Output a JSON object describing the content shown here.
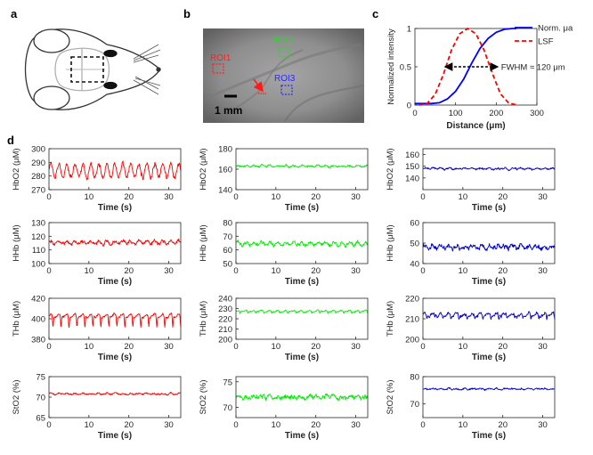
{
  "panel_labels": {
    "a": "a",
    "b": "b",
    "c": "c",
    "d": "d"
  },
  "image_b": {
    "roi1": "ROI1",
    "roi2": "ROI2",
    "roi3": "ROI3",
    "scale_bar": "1 mm",
    "roi_colors": {
      "roi1": "#ff2020",
      "roi2": "#22dd22",
      "roi3": "#2a2aff"
    }
  },
  "chart_data": [
    {
      "id": "c",
      "type": "line",
      "xlabel": "Distance (μm)",
      "ylabel": "Normalized intensity",
      "xlim": [
        0,
        300
      ],
      "ylim": [
        0,
        1
      ],
      "xticks": [
        0,
        100,
        200,
        300
      ],
      "yticks": [
        0,
        0.5,
        1
      ],
      "legend_position": "top-right",
      "annotation": "FWHM ≈ 120 μm",
      "series": [
        {
          "name": "Norm. μa",
          "color": "#0000ff",
          "style": "solid",
          "x": [
            0,
            20,
            40,
            60,
            80,
            100,
            120,
            140,
            160,
            180,
            200,
            220,
            240,
            250
          ],
          "y": [
            0.02,
            0.02,
            0.02,
            0.03,
            0.08,
            0.18,
            0.34,
            0.55,
            0.74,
            0.87,
            0.95,
            0.99,
            1.0,
            1.0
          ]
        },
        {
          "name": "LSF",
          "color": "#ff0000",
          "style": "dashed",
          "x": [
            10,
            30,
            50,
            70,
            90,
            110,
            130,
            150,
            170,
            190,
            210,
            230,
            250
          ],
          "y": [
            0.0,
            0.02,
            0.14,
            0.4,
            0.72,
            0.93,
            1.0,
            0.93,
            0.72,
            0.42,
            0.15,
            0.03,
            0.0
          ]
        }
      ]
    },
    {
      "id": "d-r1-c1",
      "type": "line",
      "ylabel": "HbO2 (μM)",
      "xlabel": "Time (s)",
      "xlim": [
        0,
        33
      ],
      "ylim": [
        270,
        300
      ],
      "yticks": [
        270,
        280,
        290,
        300
      ],
      "xticks": [
        0,
        10,
        20,
        30
      ],
      "color": "#ff0000",
      "series": [
        {
          "mean": 284,
          "noise": 2.2,
          "osc": 5,
          "period": 2.0,
          "dips": false
        }
      ]
    },
    {
      "id": "d-r1-c2",
      "type": "line",
      "ylabel": "HbO2 (μM)",
      "xlabel": "Time (s)",
      "xlim": [
        0,
        33
      ],
      "ylim": [
        140,
        180
      ],
      "yticks": [
        140,
        160,
        180
      ],
      "xticks": [
        0,
        10,
        20,
        30
      ],
      "color": "#00ee00",
      "series": [
        {
          "mean": 163,
          "noise": 1.2,
          "osc": 0.6,
          "period": 2.0,
          "dips": false
        }
      ]
    },
    {
      "id": "d-r1-c3",
      "type": "line",
      "ylabel": "HbO2 (μM)",
      "xlabel": "Time (s)",
      "xlim": [
        0,
        33
      ],
      "ylim": [
        130,
        165
      ],
      "yticks": [
        140,
        150,
        160
      ],
      "xticks": [
        0,
        10,
        20,
        30
      ],
      "color": "#0000cc",
      "series": [
        {
          "mean": 148,
          "noise": 1.0,
          "osc": 0.5,
          "period": 2.0,
          "dips": false
        }
      ]
    },
    {
      "id": "d-r2-c1",
      "type": "line",
      "ylabel": "HHb (μM)",
      "xlabel": "Time (s)",
      "xlim": [
        0,
        33
      ],
      "ylim": [
        100,
        130
      ],
      "yticks": [
        100,
        110,
        120,
        130
      ],
      "xticks": [
        0,
        10,
        20,
        30
      ],
      "color": "#ff0000",
      "series": [
        {
          "mean": 115.5,
          "noise": 1.6,
          "osc": 1.2,
          "period": 2.0,
          "dips": false
        }
      ]
    },
    {
      "id": "d-r2-c2",
      "type": "line",
      "ylabel": "HHb (μM)",
      "xlabel": "Time (s)",
      "xlim": [
        0,
        33
      ],
      "ylim": [
        50,
        80
      ],
      "yticks": [
        50,
        60,
        70,
        80
      ],
      "xticks": [
        0,
        10,
        20,
        30
      ],
      "color": "#00ee00",
      "series": [
        {
          "mean": 64.5,
          "noise": 1.6,
          "osc": 1.0,
          "period": 2.0,
          "dips": false
        }
      ]
    },
    {
      "id": "d-r2-c3",
      "type": "line",
      "ylabel": "HHb (μM)",
      "xlabel": "Time (s)",
      "xlim": [
        0,
        33
      ],
      "ylim": [
        40,
        60
      ],
      "yticks": [
        40,
        50,
        60
      ],
      "xticks": [
        0,
        10,
        20,
        30
      ],
      "color": "#0000cc",
      "series": [
        {
          "mean": 48,
          "noise": 1.5,
          "osc": 0.6,
          "period": 2.0,
          "dips": false
        }
      ]
    },
    {
      "id": "d-r3-c1",
      "type": "line",
      "ylabel": "THb (μM)",
      "xlabel": "Time (s)",
      "xlim": [
        0,
        33
      ],
      "ylim": [
        380,
        420
      ],
      "yticks": [
        380,
        400,
        420
      ],
      "xticks": [
        0,
        10,
        20,
        30
      ],
      "color": "#ff0000",
      "series": [
        {
          "mean": 403,
          "noise": 1.3,
          "osc": 1.5,
          "period": 2.0,
          "dips": true,
          "dip_depth": 11
        }
      ]
    },
    {
      "id": "d-r3-c2",
      "type": "line",
      "ylabel": "THb (μM)",
      "xlabel": "Time (s)",
      "xlim": [
        0,
        33
      ],
      "ylim": [
        200,
        240
      ],
      "yticks": [
        200,
        210,
        220,
        230,
        240
      ],
      "xticks": [
        0,
        10,
        20,
        30
      ],
      "color": "#00ee00",
      "series": [
        {
          "mean": 227.5,
          "noise": 0.8,
          "osc": 0.6,
          "period": 2.0,
          "dips": true,
          "dip_depth": 2
        }
      ]
    },
    {
      "id": "d-r3-c3",
      "type": "line",
      "ylabel": "THb (μM)",
      "xlabel": "Time (s)",
      "xlim": [
        0,
        33
      ],
      "ylim": [
        200,
        220
      ],
      "yticks": [
        200,
        210,
        220
      ],
      "xticks": [
        0,
        10,
        20,
        30
      ],
      "color": "#0000cc",
      "series": [
        {
          "mean": 212,
          "noise": 0.9,
          "osc": 0.8,
          "period": 2.0,
          "dips": true,
          "dip_depth": 2
        }
      ]
    },
    {
      "id": "d-r4-c1",
      "type": "line",
      "ylabel": "StO2 (%)",
      "xlabel": "Time (s)",
      "xlim": [
        0,
        33
      ],
      "ylim": [
        65,
        75
      ],
      "yticks": [
        65,
        70,
        75
      ],
      "xticks": [
        0,
        10,
        20,
        30
      ],
      "color": "#ff0000",
      "series": [
        {
          "mean": 70.8,
          "noise": 0.28,
          "osc": 0.15,
          "period": 2.0,
          "dips": false
        }
      ]
    },
    {
      "id": "d-r4-c2",
      "type": "line",
      "ylabel": "StO2 (%)",
      "xlabel": "Time (s)",
      "xlim": [
        0,
        33
      ],
      "ylim": [
        68,
        76
      ],
      "yticks": [
        70,
        75
      ],
      "xticks": [
        0,
        10,
        20,
        30
      ],
      "color": "#00ee00",
      "series": [
        {
          "mean": 72,
          "noise": 0.55,
          "osc": 0.2,
          "period": 2.0,
          "dips": false
        }
      ]
    },
    {
      "id": "d-r4-c3",
      "type": "line",
      "ylabel": "StO2 (%)",
      "xlabel": "Time (s)",
      "xlim": [
        0,
        33
      ],
      "ylim": [
        65,
        80
      ],
      "yticks": [
        70,
        80
      ],
      "xticks": [
        0,
        10,
        20,
        30
      ],
      "color": "#0000cc",
      "series": [
        {
          "mean": 75.5,
          "noise": 0.4,
          "osc": 0.2,
          "period": 2.0,
          "dips": false
        }
      ]
    }
  ]
}
